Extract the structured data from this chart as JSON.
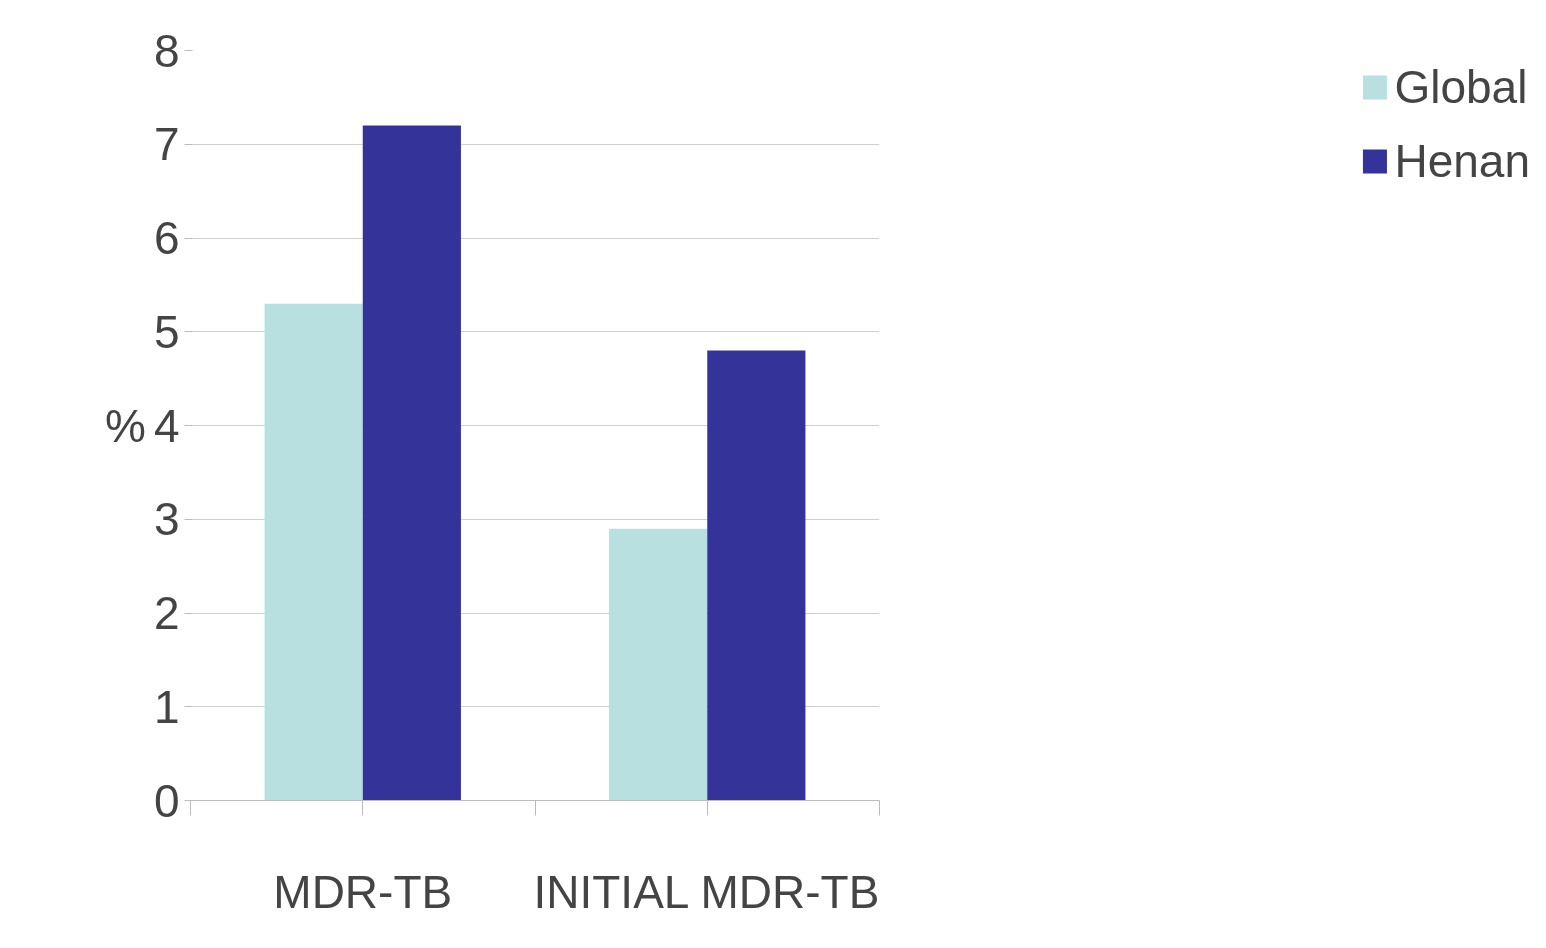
{
  "chart_data": {
    "type": "bar",
    "ylabel": "%",
    "categories": [
      "MDR-TB",
      "INITIAL MDR-TB"
    ],
    "series": [
      {
        "name": "Global",
        "color": "#b9e0e0",
        "values": [
          5.3,
          2.9
        ]
      },
      {
        "name": "Henan",
        "color": "#333399",
        "values": [
          7.2,
          4.8
        ]
      }
    ],
    "ylim": [
      0,
      8
    ],
    "yticks": [
      0,
      1,
      2,
      3,
      4,
      5,
      6,
      7,
      8
    ],
    "grid": "y",
    "legend": "right"
  }
}
